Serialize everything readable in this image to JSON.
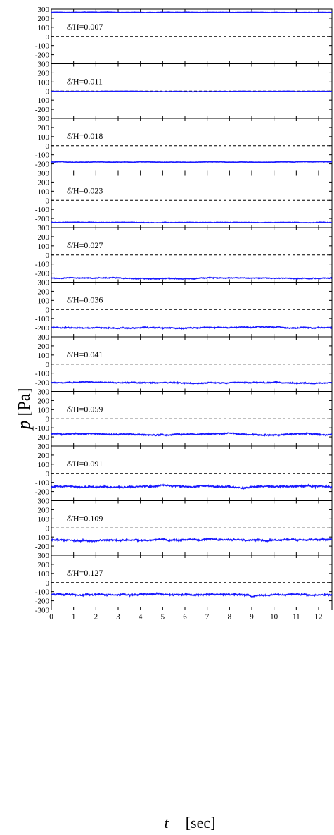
{
  "chart_data": {
    "type": "line",
    "xlabel": {
      "symbol": "t",
      "unit": "[sec]"
    },
    "ylabel": {
      "symbol": "p",
      "unit": "[Pa]"
    },
    "xlim": [
      0,
      12.6
    ],
    "ylim": [
      -300,
      300
    ],
    "x_ticks": [
      0,
      1,
      2,
      3,
      4,
      5,
      6,
      7,
      8,
      9,
      10,
      11,
      12
    ],
    "y_ticks": [
      300,
      200,
      100,
      0,
      -100,
      -200,
      -300
    ],
    "reference_line": {
      "y": 0,
      "style": "dashed"
    },
    "line_color": "#1a1aff",
    "panels": [
      {
        "label_prefix": "δ",
        "label_main": "/H=0.007",
        "mean": 265,
        "amplitude": 3
      },
      {
        "label_prefix": "δ",
        "label_main": "/H=0.011",
        "mean": -5,
        "amplitude": 3
      },
      {
        "label_prefix": "δ",
        "label_main": "/H=0.018",
        "mean": -180,
        "amplitude": 4
      },
      {
        "label_prefix": "δ",
        "label_main": "/H=0.023",
        "mean": -245,
        "amplitude": 5
      },
      {
        "label_prefix": "δ",
        "label_main": "/H=0.027",
        "mean": -255,
        "amplitude": 8
      },
      {
        "label_prefix": "δ",
        "label_main": "/H=0.036",
        "mean": -200,
        "amplitude": 10
      },
      {
        "label_prefix": "δ",
        "label_main": "/H=0.041",
        "mean": -205,
        "amplitude": 10
      },
      {
        "label_prefix": "δ",
        "label_main": "/H=0.059",
        "mean": -170,
        "amplitude": 12
      },
      {
        "label_prefix": "δ",
        "label_main": "/H=0.091",
        "mean": -145,
        "amplitude": 15
      },
      {
        "label_prefix": "δ",
        "label_main": "/H=0.109",
        "mean": -130,
        "amplitude": 15
      },
      {
        "label_prefix": "δ",
        "label_main": "/H=0.127",
        "mean": -130,
        "amplitude": 15
      }
    ]
  }
}
